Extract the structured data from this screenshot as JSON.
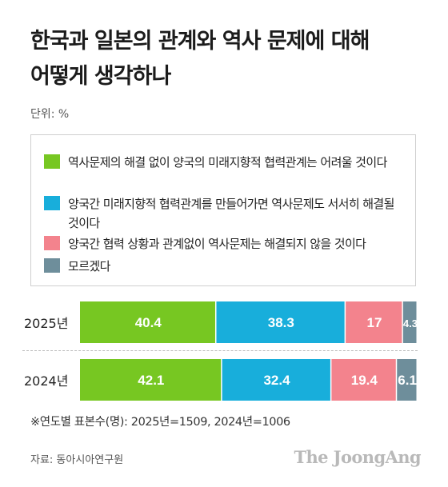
{
  "title": "한국과 일본의 관계와 역사 문제에 대해\n어떻게 생각하나",
  "unit_label": "단위: %",
  "legend": [
    {
      "label": "역사문제의 해결 없이 양국의 미래지향적 협력관계는 어려울 것이다",
      "color": "#77c722"
    },
    {
      "label": "양국간 미래지향적 협력관계를 만들어가면 역사문제도 서서히 해결될 것이다",
      "color": "#18aedb"
    },
    {
      "label": "양국간 협력 상황과 관계없이 역사문제는 해결되지 않을 것이다",
      "color": "#f3838d"
    },
    {
      "label": "모르겠다",
      "color": "#6e8e9b"
    }
  ],
  "chart_data": {
    "type": "bar",
    "orientation": "horizontal-stacked",
    "categories": [
      "2025년",
      "2024년"
    ],
    "series": [
      {
        "name": "역사문제의 해결 없이 양국의 미래지향적 협력관계는 어려울 것이다",
        "values": [
          40.4,
          42.1
        ],
        "labels": [
          "40.4",
          "42.1"
        ],
        "color": "#77c722"
      },
      {
        "name": "양국간 미래지향적 협력관계를 만들어가면 역사문제도 서서히 해결될 것이다",
        "values": [
          38.3,
          32.4
        ],
        "labels": [
          "38.3",
          "32.4"
        ],
        "color": "#18aedb"
      },
      {
        "name": "양국간 협력 상황과 관계없이 역사문제는 해결되지 않을 것이다",
        "values": [
          17,
          19.4
        ],
        "labels": [
          "17",
          "19.4"
        ],
        "color": "#f3838d"
      },
      {
        "name": "모르겠다",
        "values": [
          4.3,
          6.1
        ],
        "labels": [
          "4.3",
          "6.1"
        ],
        "color": "#6e8e9b"
      }
    ],
    "xlim": [
      0,
      100
    ],
    "title": "한국과 일본의 관계와 역사 문제에 대해 어떻게 생각하나",
    "legend_position": "top"
  },
  "note": "※연도별 표본수(명): 2025년=1509, 2024년=1006",
  "source": "자료: 동아시아연구원",
  "brand": "The JoongAng"
}
